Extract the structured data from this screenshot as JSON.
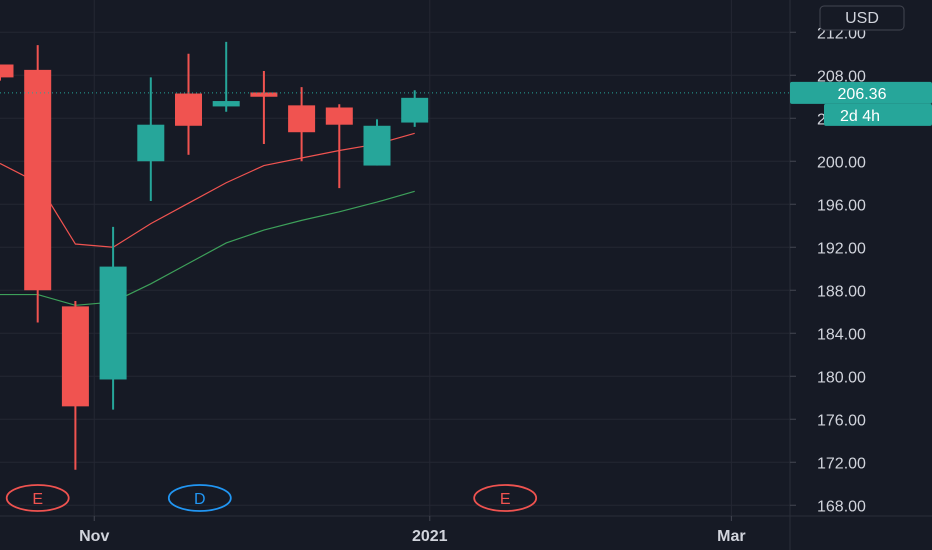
{
  "currency": {
    "label": "USD"
  },
  "price_label": {
    "value": "206.36",
    "countdown": "2d 4h"
  },
  "chart_data": {
    "type": "candlestick",
    "y_ticks": [
      "212.00",
      "208.00",
      "204.00",
      "200.00",
      "196.00",
      "192.00",
      "188.00",
      "184.00",
      "180.00",
      "176.00",
      "172.00",
      "168.00"
    ],
    "ylim": [
      167,
      215
    ],
    "x_labels": [
      {
        "label": "Nov",
        "bar": 2.5
      },
      {
        "label": "2021",
        "bar": 11.4
      },
      {
        "label": "Mar",
        "bar": 19.4
      }
    ],
    "grid": true,
    "candles": [
      {
        "open": 209.0,
        "high": 209.0,
        "low": 207.5,
        "close": 207.8
      },
      {
        "open": 208.5,
        "high": 210.8,
        "low": 185.0,
        "close": 188.0
      },
      {
        "open": 186.5,
        "high": 187.0,
        "low": 171.3,
        "close": 177.2
      },
      {
        "open": 179.7,
        "high": 193.9,
        "low": 176.9,
        "close": 190.2
      },
      {
        "open": 200.0,
        "high": 207.8,
        "low": 196.3,
        "close": 203.4
      },
      {
        "open": 206.3,
        "high": 210.0,
        "low": 200.6,
        "close": 203.3
      },
      {
        "open": 205.1,
        "high": 211.1,
        "low": 204.6,
        "close": 205.6
      },
      {
        "open": 206.4,
        "high": 208.4,
        "low": 201.6,
        "close": 206.0
      },
      {
        "open": 205.2,
        "high": 206.9,
        "low": 200.0,
        "close": 202.7
      },
      {
        "open": 205.0,
        "high": 205.3,
        "low": 197.5,
        "close": 203.4
      },
      {
        "open": 199.6,
        "high": 203.9,
        "low": 199.6,
        "close": 203.3
      },
      {
        "open": 203.6,
        "high": 206.6,
        "low": 203.2,
        "close": 205.9
      }
    ],
    "series": [
      {
        "color": "#f05350",
        "values": [
          199.8,
          198.0,
          192.3,
          192.0,
          194.2,
          196.1,
          198.0,
          199.6,
          200.3,
          201.0,
          201.6,
          202.6
        ]
      },
      {
        "color": "#3da05a",
        "values": [
          187.6,
          187.6,
          186.6,
          186.9,
          188.6,
          190.5,
          192.4,
          193.6,
          194.5,
          195.3,
          196.2,
          197.2
        ]
      }
    ],
    "last_price": 206.36,
    "events": [
      {
        "label": "E",
        "bar": 1.0,
        "color": "#f05350"
      },
      {
        "label": "D",
        "bar": 5.3,
        "color": "#2196f3"
      },
      {
        "label": "E",
        "bar": 13.4,
        "color": "#f05350"
      }
    ],
    "colors": {
      "up": "#26a69a",
      "down": "#f05350"
    }
  }
}
